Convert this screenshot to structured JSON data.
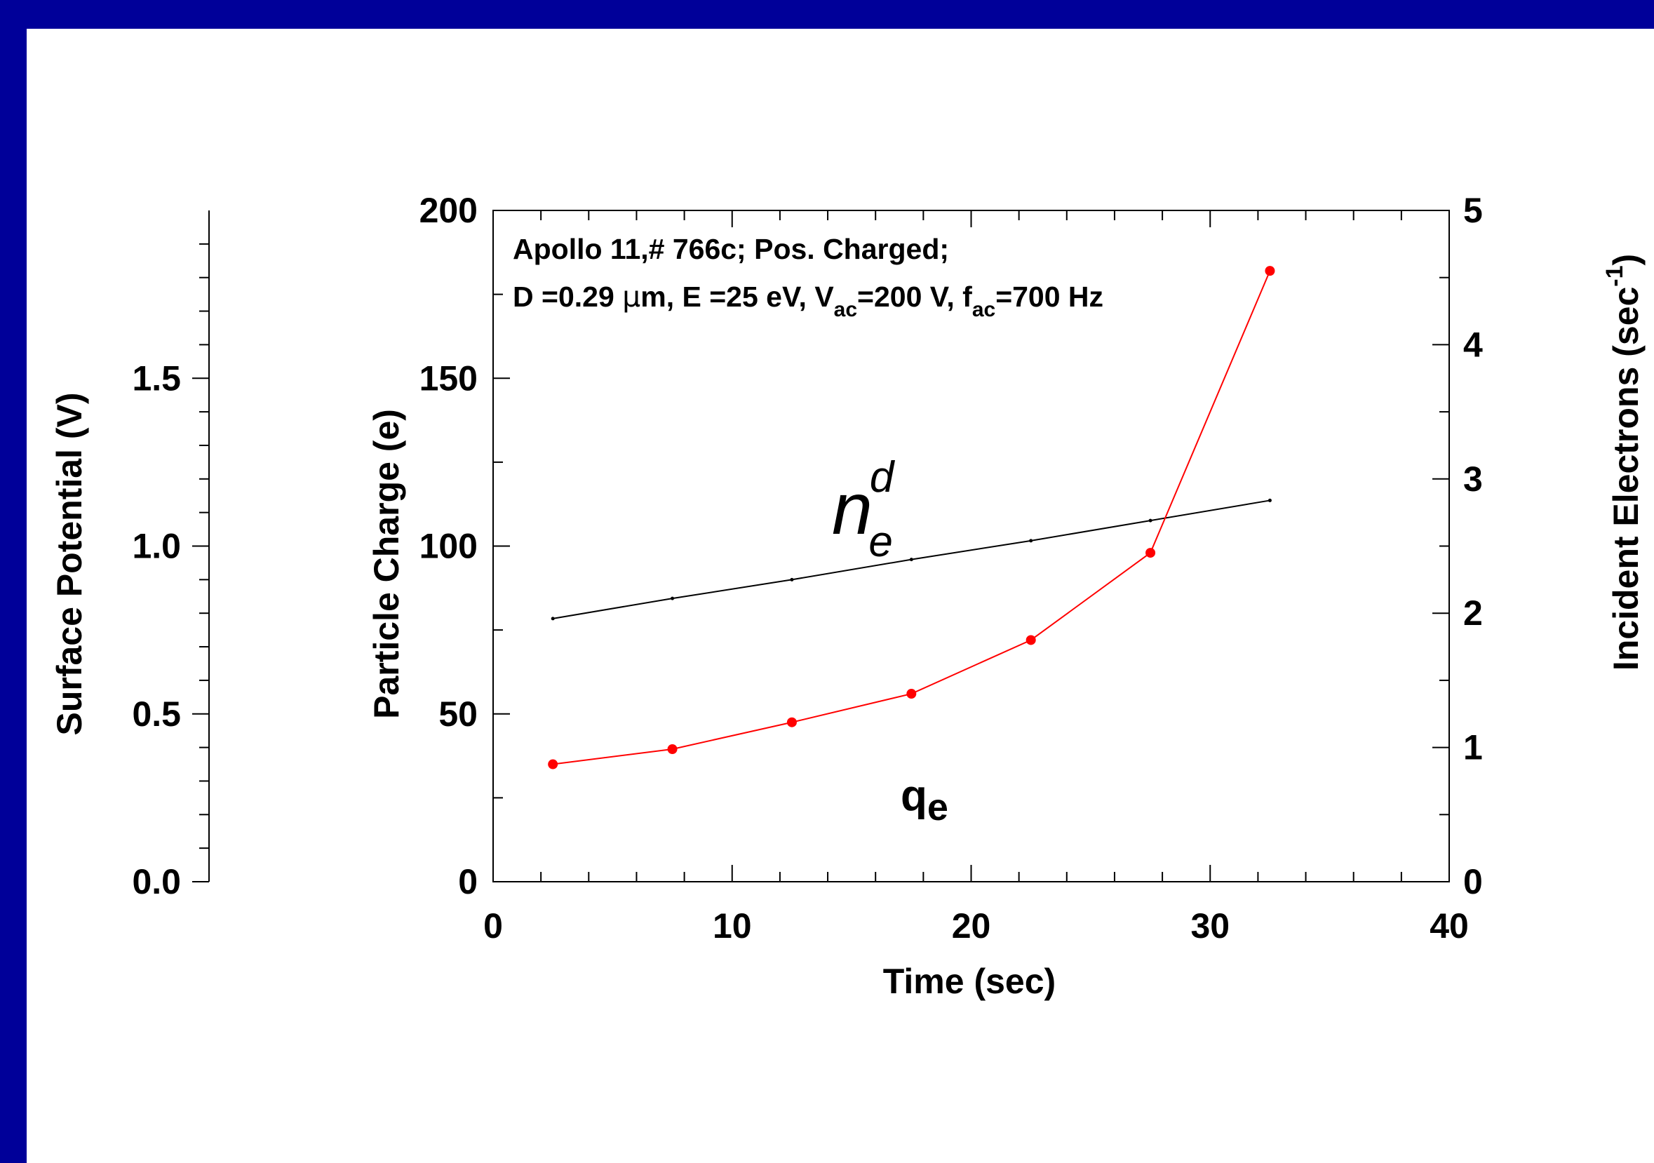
{
  "chart_data": {
    "type": "line",
    "x_axis": {
      "label": "Time (sec)",
      "range": [
        0,
        40
      ],
      "ticks": [
        "0",
        "10",
        "20",
        "30",
        "40"
      ]
    },
    "y_axis_left": {
      "label": "Particle Charge (e)",
      "range": [
        0,
        200
      ],
      "ticks": [
        "0",
        "50",
        "100",
        "150",
        "200"
      ]
    },
    "y_axis_right": {
      "label_main": "Incident Electrons (sec",
      "label_sup": "-1",
      "label_close": ")",
      "range": [
        0,
        5
      ],
      "ticks": [
        "0",
        "1",
        "2",
        "3",
        "4",
        "5"
      ]
    },
    "y_axis_extra": {
      "label": "Surface Potential (V)",
      "range": [
        0,
        2
      ],
      "ticks": [
        "0.0",
        "0.5",
        "1.0",
        "1.5"
      ]
    },
    "annotation": {
      "line1": "Apollo 11,# 766c; Pos. Charged;",
      "line2": {
        "p1": "D =0.29 ",
        "mu": "µ",
        "p2": "m, E =25 eV, V",
        "sub1": "ac",
        "p3": "=200 V, f",
        "sub2": "ac",
        "p4": "=700 Hz"
      }
    },
    "series": [
      {
        "label_base": "n",
        "label_sup": "d",
        "label_sub": "e",
        "axis": "right",
        "color": "#000000",
        "x": [
          2.5,
          7.5,
          12.5,
          17.5,
          22.5,
          27.5,
          32.5
        ],
        "y": [
          1.96,
          2.11,
          2.25,
          2.4,
          2.54,
          2.69,
          2.84
        ]
      },
      {
        "label_base": "q",
        "label_sub": "e",
        "axis": "left",
        "color": "#ff0000",
        "x": [
          2.5,
          7.5,
          12.5,
          17.5,
          22.5,
          27.5,
          32.5
        ],
        "y": [
          35,
          39.5,
          47.5,
          56,
          72,
          98,
          182
        ]
      }
    ]
  }
}
